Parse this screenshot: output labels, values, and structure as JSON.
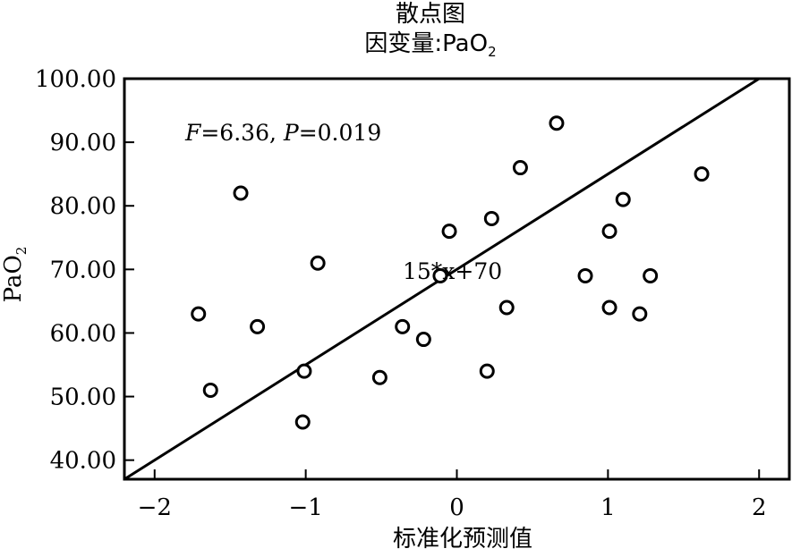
{
  "chart_data": {
    "type": "scatter",
    "title": "散点图",
    "subtitle": {
      "prefix": "因变量:PaO",
      "sub": "2"
    },
    "xlabel": "标准化预测值",
    "ylabel": {
      "prefix": "PaO",
      "sub": "2"
    },
    "xlim": [
      -2.2,
      2.2
    ],
    "ylim": [
      37,
      100
    ],
    "x_ticks": [
      -2,
      -1,
      0,
      1,
      2
    ],
    "x_tick_labels": [
      "−2",
      "−1",
      "0",
      "1",
      "2"
    ],
    "y_ticks": [
      40,
      50,
      60,
      70,
      80,
      90,
      100
    ],
    "y_tick_labels": [
      "40.00",
      "50.00",
      "60.00",
      "70.00",
      "80.00",
      "90.00",
      "100.00"
    ],
    "fit_line": {
      "label": "15*x+70",
      "slope": 15,
      "intercept": 70
    },
    "stats": {
      "f_name": "F",
      "f_value": "=6.36, ",
      "p_name": "P",
      "p_value": "=0.019"
    },
    "points": [
      {
        "x": -1.71,
        "y": 63
      },
      {
        "x": -1.63,
        "y": 51
      },
      {
        "x": -1.43,
        "y": 82
      },
      {
        "x": -1.32,
        "y": 61
      },
      {
        "x": -1.02,
        "y": 46
      },
      {
        "x": -1.01,
        "y": 54
      },
      {
        "x": -0.92,
        "y": 71
      },
      {
        "x": -0.51,
        "y": 53
      },
      {
        "x": -0.36,
        "y": 61
      },
      {
        "x": -0.22,
        "y": 59
      },
      {
        "x": -0.11,
        "y": 69
      },
      {
        "x": -0.05,
        "y": 76
      },
      {
        "x": 0.2,
        "y": 54
      },
      {
        "x": 0.23,
        "y": 78
      },
      {
        "x": 0.33,
        "y": 64
      },
      {
        "x": 0.42,
        "y": 86
      },
      {
        "x": 0.66,
        "y": 93
      },
      {
        "x": 0.85,
        "y": 69
      },
      {
        "x": 1.01,
        "y": 76
      },
      {
        "x": 1.01,
        "y": 64
      },
      {
        "x": 1.1,
        "y": 81
      },
      {
        "x": 1.21,
        "y": 63
      },
      {
        "x": 1.28,
        "y": 69
      },
      {
        "x": 1.62,
        "y": 85
      }
    ]
  }
}
